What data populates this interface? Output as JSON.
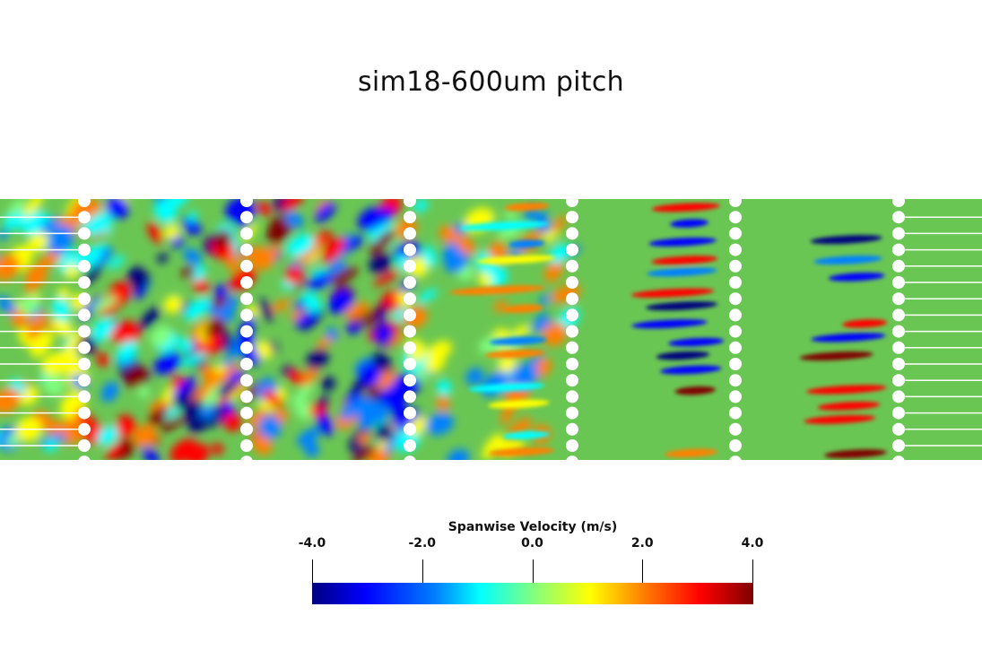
{
  "title": "sim18-600um pitch",
  "colorbar": {
    "title": "Spanwise Velocity (m/s)",
    "ticks": [
      "-4.0",
      "-2.0",
      "0.0",
      "2.0",
      "4.0"
    ],
    "range": [
      -4.0,
      4.0
    ],
    "colormap": "jet",
    "colors": [
      "#00007f",
      "#0000ff",
      "#0080ff",
      "#00ffff",
      "#80ff80",
      "#ffff00",
      "#ff8000",
      "#ff0000",
      "#7f0000"
    ]
  },
  "field": {
    "background_color": "#6ac653",
    "pillar_color": "#ffffff",
    "pillar_rows": 6,
    "pillars_per_row": 17
  }
}
